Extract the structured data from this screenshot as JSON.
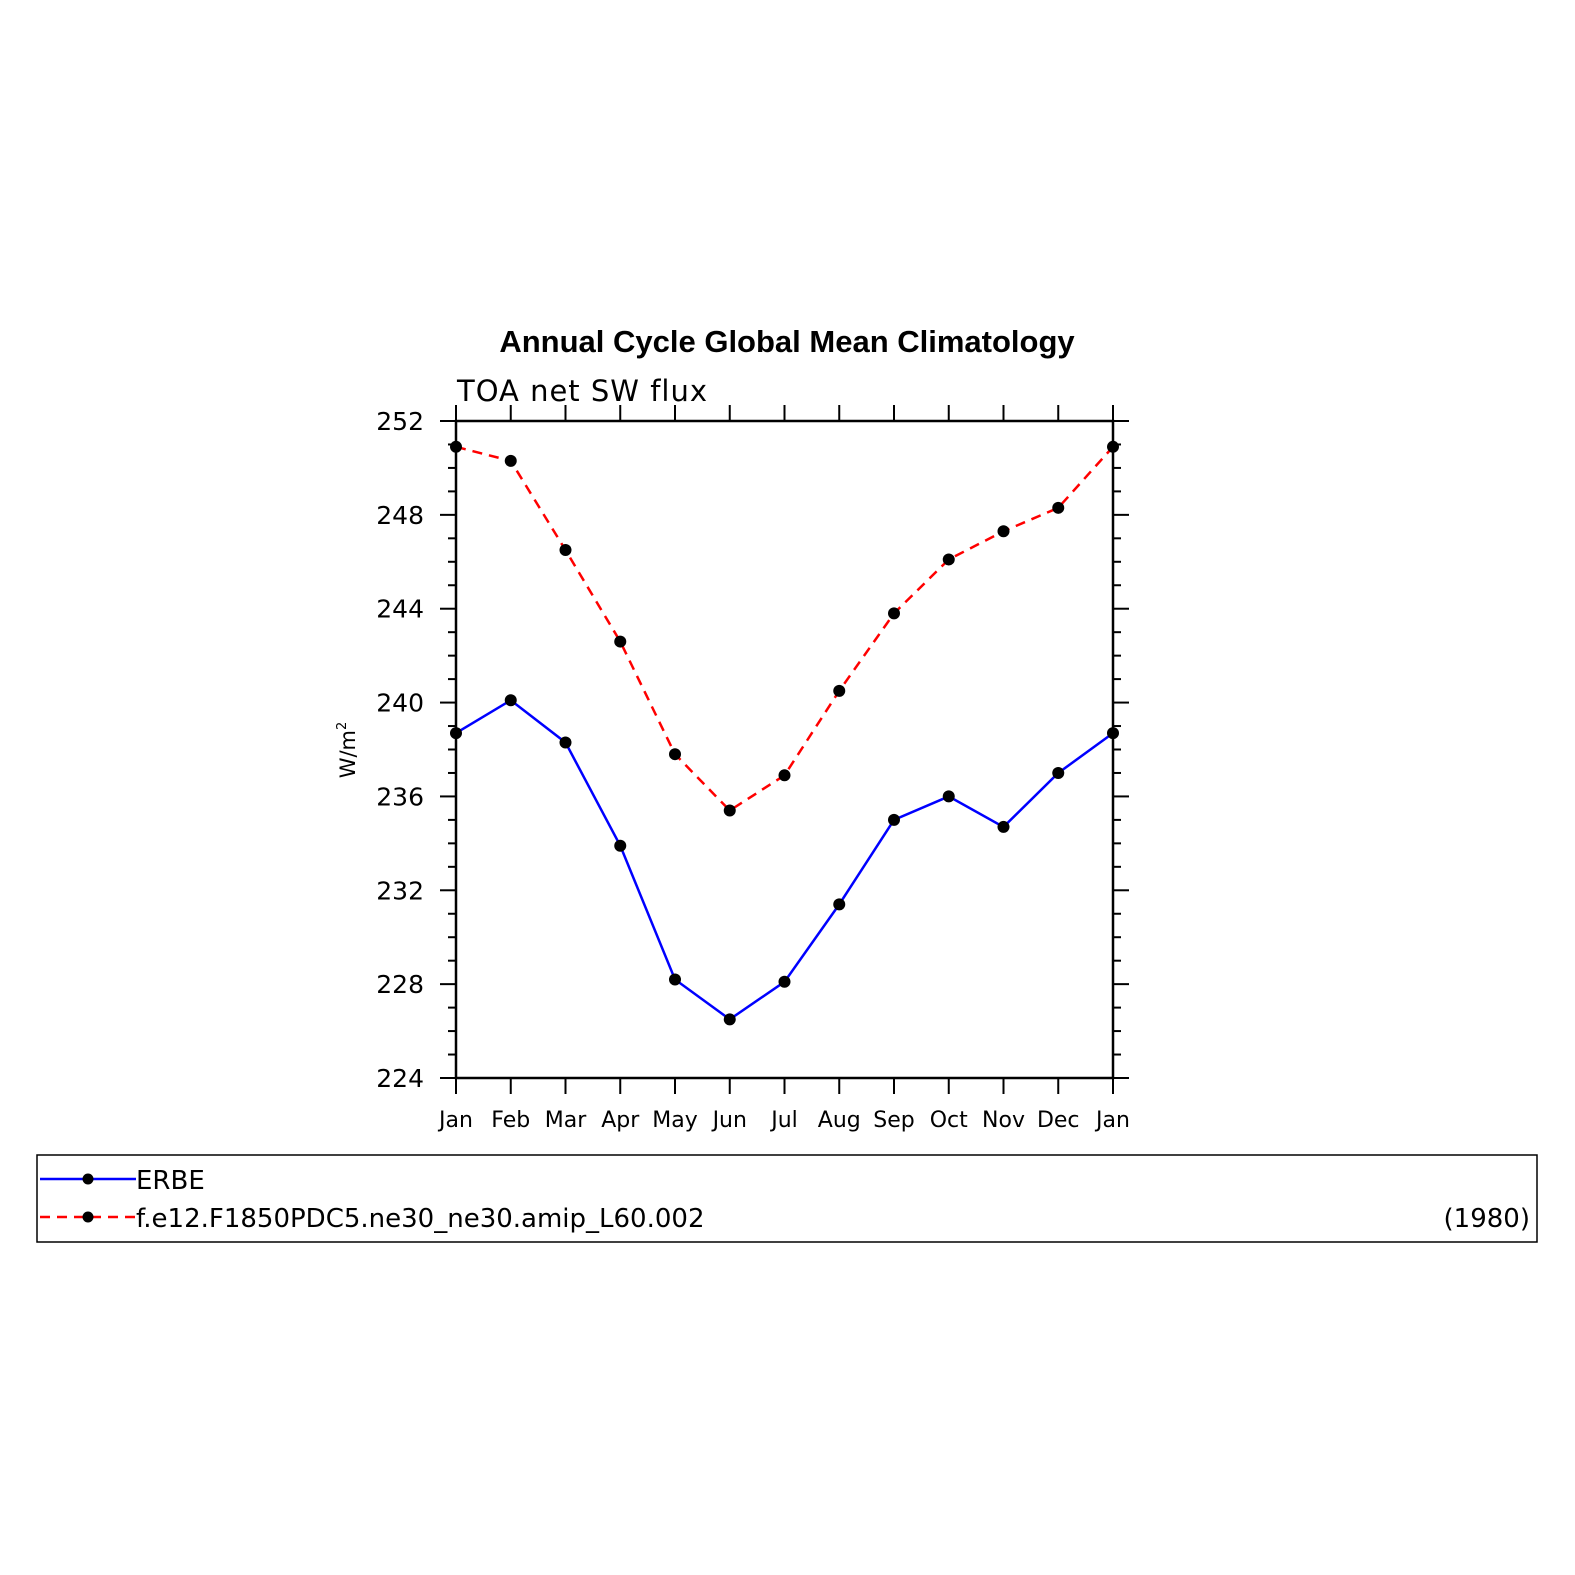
{
  "chart_data": {
    "type": "line",
    "title": "Annual Cycle Global Mean Climatology",
    "subtitle": "TOA net SW flux",
    "xlabel": "",
    "ylabel": "W/m",
    "ylabel_superscript": "2",
    "categories": [
      "Jan",
      "Feb",
      "Mar",
      "Apr",
      "May",
      "Jun",
      "Jul",
      "Aug",
      "Sep",
      "Oct",
      "Nov",
      "Dec",
      "Jan"
    ],
    "ylim": [
      224,
      252
    ],
    "yticks": [
      "224",
      "228",
      "232",
      "236",
      "240",
      "244",
      "248",
      "252"
    ],
    "grid": false,
    "legend_position": "bottom",
    "series": [
      {
        "name": "ERBE",
        "color": "#0000ff",
        "line_style": "solid",
        "values": [
          238.7,
          240.1,
          238.3,
          233.9,
          228.2,
          226.5,
          228.1,
          231.4,
          235.0,
          236.0,
          234.7,
          237.0,
          238.7
        ]
      },
      {
        "name": "f.e12.F1850PDC5.ne30_ne30.amip_L60.002",
        "color": "#ff0000",
        "line_style": "dashed",
        "values": [
          250.9,
          250.3,
          246.5,
          242.6,
          237.8,
          235.4,
          236.9,
          240.5,
          243.8,
          246.1,
          247.3,
          248.3,
          250.9
        ]
      }
    ],
    "legend_annotation": "(1980)"
  }
}
